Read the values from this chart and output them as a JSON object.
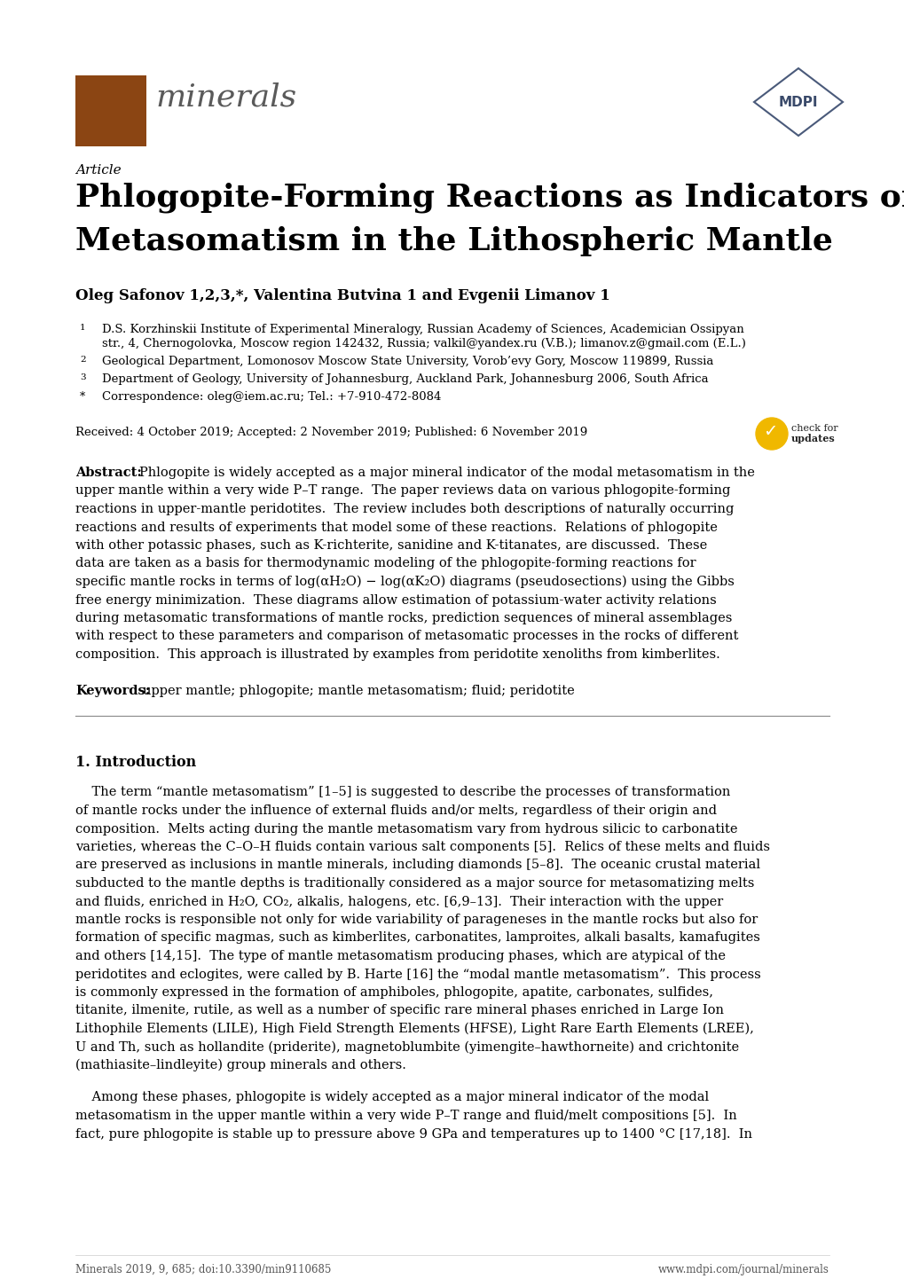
{
  "page_width": 10.2,
  "page_height": 14.42,
  "bg_color": "#ffffff",
  "journal_name": "minerals",
  "journal_color": "#8B4513",
  "article_label": "Article",
  "title_line1": "Phlogopite-Forming Reactions as Indicators of",
  "title_line2": "Metasomatism in the Lithospheric Mantle",
  "authors": "Oleg Safonov 1,2,3,*, Valentina Butvina 1 and Evgenii Limanov 1",
  "aff1": "D.S. Korzhinskii Institute of Experimental Mineralogy, Russian Academy of Sciences, Academician Ossipyan",
  "aff1b": "str., 4, Chernogolovka, Moscow region 142432, Russia; valkil@yandex.ru (V.B.); limanov.z@gmail.com (E.L.)",
  "aff2": "Geological Department, Lomonosov Moscow State University, Vorob’evy Gory, Moscow 119899, Russia",
  "aff3": "Department of Geology, University of Johannesburg, Auckland Park, Johannesburg 2006, South Africa",
  "aff_star": "Correspondence: oleg@iem.ac.ru; Tel.: +7-910-472-8084",
  "received_line": "Received: 4 October 2019; Accepted: 2 November 2019; Published: 6 November 2019",
  "abstract_lines": [
    "Phlogopite is widely accepted as a major mineral indicator of the modal metasomatism in the",
    "upper mantle within a very wide P–T range.  The paper reviews data on various phlogopite-forming",
    "reactions in upper-mantle peridotites.  The review includes both descriptions of naturally occurring",
    "reactions and results of experiments that model some of these reactions.  Relations of phlogopite",
    "with other potassic phases, such as K-richterite, sanidine and K-titanates, are discussed.  These",
    "data are taken as a basis for thermodynamic modeling of the phlogopite-forming reactions for",
    "specific mantle rocks in terms of log(αH₂O) − log(αK₂O) diagrams (pseudosections) using the Gibbs",
    "free energy minimization.  These diagrams allow estimation of potassium-water activity relations",
    "during metasomatic transformations of mantle rocks, prediction sequences of mineral assemblages",
    "with respect to these parameters and comparison of metasomatic processes in the rocks of different",
    "composition.  This approach is illustrated by examples from peridotite xenoliths from kimberlites."
  ],
  "keywords_text": "upper mantle; phlogopite; mantle metasomatism; fluid; peridotite",
  "section1_title": "1. Introduction",
  "intro_lines1": [
    "    The term “mantle metasomatism” [1–5] is suggested to describe the processes of transformation",
    "of mantle rocks under the influence of external fluids and/or melts, regardless of their origin and",
    "composition.  Melts acting during the mantle metasomatism vary from hydrous silicic to carbonatite",
    "varieties, whereas the C–O–H fluids contain various salt components [5].  Relics of these melts and fluids",
    "are preserved as inclusions in mantle minerals, including diamonds [5–8].  The oceanic crustal material",
    "subducted to the mantle depths is traditionally considered as a major source for metasomatizing melts",
    "and fluids, enriched in H₂O, CO₂, alkalis, halogens, etc. [6,9–13].  Their interaction with the upper",
    "mantle rocks is responsible not only for wide variability of parageneses in the mantle rocks but also for",
    "formation of specific magmas, such as kimberlites, carbonatites, lamproites, alkali basalts, kamafugites",
    "and others [14,15].  The type of mantle metasomatism producing phases, which are atypical of the",
    "peridotites and eclogites, were called by B. Harte [16] the “modal mantle metasomatism”.  This process",
    "is commonly expressed in the formation of amphiboles, phlogopite, apatite, carbonates, sulfides,",
    "titanite, ilmenite, rutile, as well as a number of specific rare mineral phases enriched in Large Ion",
    "Lithophile Elements (LILE), High Field Strength Elements (HFSE), Light Rare Earth Elements (LREE),",
    "U and Th, such as hollandite (priderite), magnetoblumbite (yimengite–hawthorneite) and crichtonite",
    "(mathiasite–lindleyite) group minerals and others."
  ],
  "intro_lines2": [
    "    Among these phases, phlogopite is widely accepted as a major mineral indicator of the modal",
    "metasomatism in the upper mantle within a very wide P–T range and fluid/melt compositions [5].  In",
    "fact, pure phlogopite is stable up to pressure above 9 GPa and temperatures up to 1400 °C [17,18].  In"
  ],
  "footer_left": "Minerals 2019, 9, 685; doi:10.3390/min9110685",
  "footer_right": "www.mdpi.com/journal/minerals",
  "hr_color": "#888888"
}
